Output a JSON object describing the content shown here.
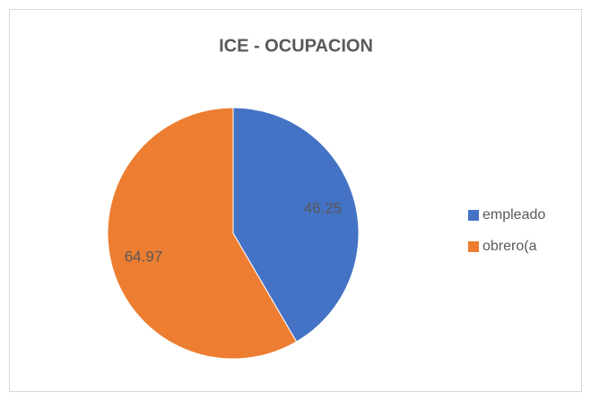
{
  "chart_data": {
    "type": "pie",
    "title": "ICE - OCUPACION",
    "categories": [
      "empleado",
      "obrero(a"
    ],
    "values": [
      46.25,
      64.97
    ],
    "colors": [
      "#4472c4",
      "#ed7d31"
    ],
    "legend": "right"
  }
}
